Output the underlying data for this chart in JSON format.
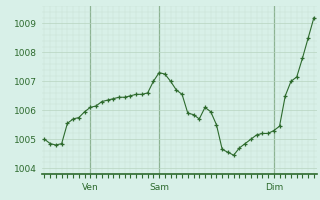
{
  "x_values": [
    0,
    1,
    2,
    3,
    4,
    5,
    6,
    7,
    8,
    9,
    10,
    11,
    12,
    13,
    14,
    15,
    16,
    17,
    18,
    19,
    20,
    21,
    22,
    23,
    24,
    25,
    26,
    27,
    28,
    29,
    30,
    31,
    32,
    33,
    34,
    35,
    36,
    37,
    38,
    39,
    40,
    41,
    42,
    43,
    44,
    45,
    46,
    47
  ],
  "y_values": [
    1005.0,
    1004.85,
    1004.8,
    1004.85,
    1005.55,
    1005.7,
    1005.75,
    1005.95,
    1006.1,
    1006.15,
    1006.3,
    1006.35,
    1006.4,
    1006.45,
    1006.45,
    1006.5,
    1006.55,
    1006.55,
    1006.6,
    1007.0,
    1007.3,
    1007.25,
    1007.0,
    1006.7,
    1006.55,
    1005.9,
    1005.85,
    1005.7,
    1006.1,
    1005.95,
    1005.5,
    1004.65,
    1004.55,
    1004.45,
    1004.7,
    1004.85,
    1005.0,
    1005.15,
    1005.2,
    1005.2,
    1005.3,
    1005.45,
    1006.5,
    1007.0,
    1007.15,
    1007.8,
    1008.5,
    1009.2
  ],
  "xtick_positions": [
    8,
    20,
    40
  ],
  "xtick_labels": [
    "Ven",
    "Sam",
    "Dim"
  ],
  "ytick_values": [
    1004,
    1005,
    1006,
    1007,
    1008,
    1009
  ],
  "ylim": [
    1003.8,
    1009.6
  ],
  "xlim": [
    -0.5,
    47.5
  ],
  "line_color": "#2d6a2d",
  "marker_color": "#2d6a2d",
  "bg_color": "#d8f0e8",
  "grid_color_major": "#b8d4c0",
  "grid_color_minor": "#c8e0d0",
  "spine_color": "#2d6a2d",
  "text_color": "#2d6a2d",
  "vline_color": "#2d6a2d",
  "figsize": [
    3.2,
    2.0
  ],
  "dpi": 100
}
